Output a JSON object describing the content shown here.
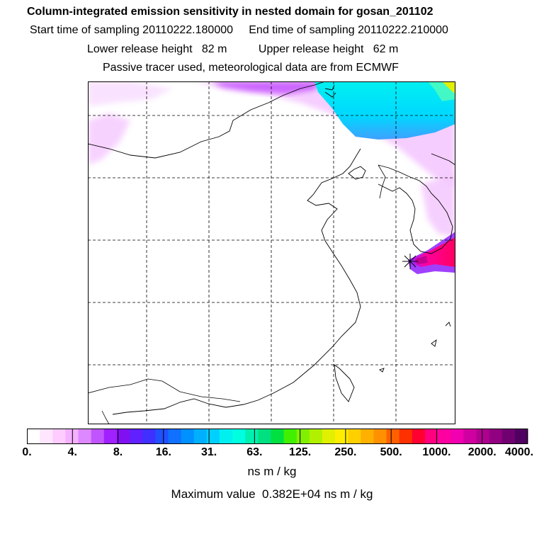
{
  "header": {
    "title": "Column-integrated emission sensitivity in nested domain for gosan_201102",
    "start_label": "Start time of sampling 20110222.180000",
    "end_label": "End time of sampling 20110222.210000",
    "lower_label": "Lower release height   82 m",
    "upper_label": "Upper release height   62 m",
    "info": "Passive tracer used, meteorological data are from ECMWF"
  },
  "colorbar": {
    "ticks": [
      "0.",
      "4.",
      "8.",
      "16.",
      "31.",
      "63.",
      "125.",
      "250.",
      "500.",
      "1000.",
      "2000.",
      "4000."
    ],
    "colors": [
      "#ffffff",
      "#ffe6ff",
      "#ffccff",
      "#f5b0ff",
      "#dd88ff",
      "#c055ff",
      "#a020ff",
      "#8010f0",
      "#6020ff",
      "#4030ff",
      "#2050ff",
      "#1070ff",
      "#0090ff",
      "#00b0ff",
      "#00d0ff",
      "#00f0f0",
      "#00ffe0",
      "#00f0b0",
      "#00e080",
      "#00e040",
      "#40f000",
      "#80f000",
      "#b0f000",
      "#e0f000",
      "#ffee00",
      "#ffd000",
      "#ffb000",
      "#ff9000",
      "#ff6000",
      "#ff3000",
      "#ff0030",
      "#ff0080",
      "#ff00a0",
      "#f000b0",
      "#d000a0",
      "#b00090",
      "#900080",
      "#700070",
      "#500060"
    ],
    "unit": "ns m / kg"
  },
  "max_value": "Maximum value  0.382E+04 ns m / kg"
}
